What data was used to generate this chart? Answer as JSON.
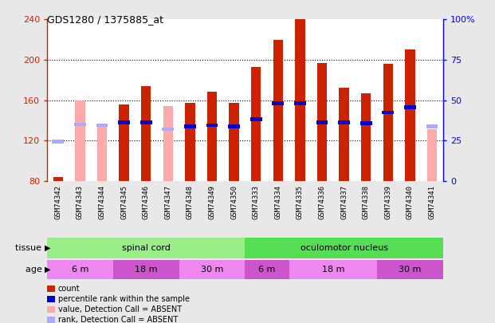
{
  "title": "GDS1280 / 1375885_at",
  "samples": [
    "GSM74342",
    "GSM74343",
    "GSM74344",
    "GSM74345",
    "GSM74346",
    "GSM74347",
    "GSM74348",
    "GSM74349",
    "GSM74350",
    "GSM74333",
    "GSM74334",
    "GSM74335",
    "GSM74336",
    "GSM74337",
    "GSM74338",
    "GSM74339",
    "GSM74340",
    "GSM74341"
  ],
  "count_values": [
    84,
    null,
    null,
    156,
    174,
    null,
    157,
    168,
    157,
    193,
    220,
    240,
    197,
    172,
    167,
    196,
    210,
    null
  ],
  "absent_value_values": [
    null,
    160,
    134,
    null,
    null,
    154,
    null,
    null,
    null,
    null,
    null,
    null,
    null,
    null,
    null,
    null,
    null,
    131
  ],
  "percentile_rank": [
    null,
    null,
    null,
    138,
    138,
    null,
    134,
    135,
    134,
    141,
    157,
    157,
    138,
    138,
    137,
    148,
    153,
    null
  ],
  "absent_rank_values": [
    119,
    136,
    135,
    null,
    null,
    131,
    null,
    null,
    null,
    null,
    null,
    null,
    null,
    null,
    null,
    null,
    null,
    134
  ],
  "ylim": [
    80,
    240
  ],
  "yticks_left": [
    80,
    120,
    160,
    200,
    240
  ],
  "yticks_right": [
    0,
    25,
    50,
    75,
    100
  ],
  "count_color": "#cc2200",
  "absent_value_color": "#ffaaaa",
  "percentile_color": "#0000cc",
  "absent_rank_color": "#aaaaff",
  "tissue_groups": [
    {
      "label": "spinal cord",
      "start": 0,
      "end": 9,
      "color": "#99ee88"
    },
    {
      "label": "oculomotor nucleus",
      "start": 9,
      "end": 18,
      "color": "#55dd55"
    }
  ],
  "age_groups": [
    {
      "label": "6 m",
      "start": 0,
      "end": 3,
      "color": "#ee88ee"
    },
    {
      "label": "18 m",
      "start": 3,
      "end": 6,
      "color": "#cc55cc"
    },
    {
      "label": "30 m",
      "start": 6,
      "end": 9,
      "color": "#ee88ee"
    },
    {
      "label": "6 m",
      "start": 9,
      "end": 11,
      "color": "#cc55cc"
    },
    {
      "label": "18 m",
      "start": 11,
      "end": 15,
      "color": "#ee88ee"
    },
    {
      "label": "30 m",
      "start": 15,
      "end": 18,
      "color": "#cc55cc"
    }
  ],
  "legend_items": [
    {
      "label": "count",
      "color": "#cc2200"
    },
    {
      "label": "percentile rank within the sample",
      "color": "#0000cc"
    },
    {
      "label": "value, Detection Call = ABSENT",
      "color": "#ffaaaa"
    },
    {
      "label": "rank, Detection Call = ABSENT",
      "color": "#aaaaff"
    }
  ],
  "bg_color": "#e8e8e8",
  "plot_bg_color": "#ffffff",
  "xtick_bg": "#cccccc"
}
